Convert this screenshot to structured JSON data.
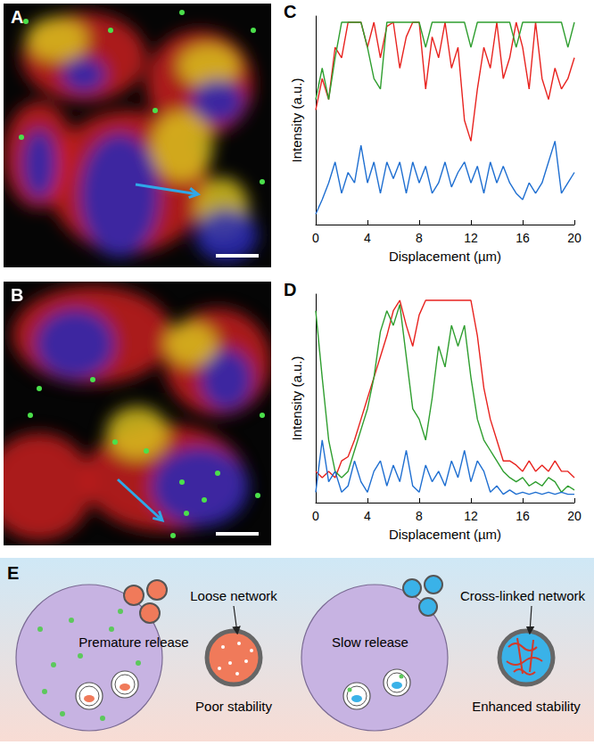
{
  "images": [
    {
      "panel_label": "A"
    },
    {
      "panel_label": "B"
    }
  ],
  "chart_data": [
    {
      "type": "line",
      "panel_label": "C",
      "x_label": "Displacement (µm)",
      "y_label": "Intensity (a.u.)",
      "x": [
        0,
        0.5,
        1,
        1.5,
        2,
        2.5,
        3,
        3.5,
        4,
        4.5,
        5,
        5.5,
        6,
        6.5,
        7,
        7.5,
        8,
        8.5,
        9,
        9.5,
        10,
        10.5,
        11,
        11.5,
        12,
        12.5,
        13,
        13.5,
        14,
        14.5,
        15,
        15.5,
        16,
        16.5,
        17,
        17.5,
        18,
        18.5,
        19,
        19.5,
        20
      ],
      "series": [
        {
          "color": "#e8231f",
          "values": [
            0.55,
            0.7,
            0.6,
            0.85,
            0.8,
            0.97,
            0.97,
            0.97,
            0.85,
            0.97,
            0.8,
            0.95,
            0.97,
            0.75,
            0.9,
            0.97,
            0.97,
            0.65,
            0.9,
            0.8,
            0.97,
            0.75,
            0.85,
            0.5,
            0.4,
            0.65,
            0.85,
            0.75,
            0.97,
            0.7,
            0.8,
            0.97,
            0.85,
            0.65,
            0.97,
            0.7,
            0.6,
            0.75,
            0.65,
            0.7,
            0.8
          ]
        },
        {
          "color": "#2f9e2f",
          "values": [
            0.6,
            0.75,
            0.6,
            0.8,
            0.97,
            0.97,
            0.97,
            0.97,
            0.85,
            0.7,
            0.65,
            0.97,
            0.97,
            0.97,
            0.97,
            0.97,
            0.97,
            0.85,
            0.97,
            0.97,
            0.97,
            0.97,
            0.97,
            0.97,
            0.85,
            0.97,
            0.97,
            0.97,
            0.97,
            0.97,
            0.97,
            0.85,
            0.97,
            0.97,
            0.97,
            0.97,
            0.97,
            0.97,
            0.97,
            0.85,
            0.97
          ]
        },
        {
          "color": "#1f6fd1",
          "values": [
            0.05,
            0.12,
            0.2,
            0.3,
            0.15,
            0.25,
            0.2,
            0.38,
            0.2,
            0.3,
            0.15,
            0.3,
            0.22,
            0.3,
            0.15,
            0.3,
            0.2,
            0.28,
            0.15,
            0.2,
            0.3,
            0.18,
            0.25,
            0.3,
            0.2,
            0.28,
            0.15,
            0.3,
            0.2,
            0.28,
            0.2,
            0.15,
            0.12,
            0.2,
            0.15,
            0.2,
            0.3,
            0.4,
            0.15,
            0.2,
            0.25
          ]
        }
      ],
      "xlim": [
        0,
        20
      ],
      "xticks": [
        0,
        4,
        8,
        12,
        16,
        20
      ],
      "ylim": [
        0,
        1
      ],
      "tick_labels": "x"
    },
    {
      "type": "line",
      "panel_label": "D",
      "x_label": "Displacement (µm)",
      "y_label": "Intensity (a.u.)",
      "x": [
        0,
        0.5,
        1,
        1.5,
        2,
        2.5,
        3,
        3.5,
        4,
        4.5,
        5,
        5.5,
        6,
        6.5,
        7,
        7.5,
        8,
        8.5,
        9,
        9.5,
        10,
        10.5,
        11,
        11.5,
        12,
        12.5,
        13,
        13.5,
        14,
        14.5,
        15,
        15.5,
        16,
        16.5,
        17,
        17.5,
        18,
        18.5,
        19,
        19.5,
        20
      ],
      "series": [
        {
          "color": "#e8231f",
          "values": [
            0.15,
            0.12,
            0.15,
            0.12,
            0.2,
            0.22,
            0.3,
            0.4,
            0.5,
            0.6,
            0.7,
            0.8,
            0.92,
            0.97,
            0.85,
            0.75,
            0.9,
            0.97,
            0.97,
            0.97,
            0.97,
            0.97,
            0.97,
            0.97,
            0.97,
            0.8,
            0.55,
            0.4,
            0.3,
            0.2,
            0.2,
            0.18,
            0.15,
            0.2,
            0.15,
            0.18,
            0.15,
            0.2,
            0.15,
            0.15,
            0.12
          ]
        },
        {
          "color": "#2f9e2f",
          "values": [
            0.92,
            0.6,
            0.3,
            0.15,
            0.12,
            0.15,
            0.25,
            0.35,
            0.45,
            0.6,
            0.82,
            0.92,
            0.85,
            0.95,
            0.7,
            0.45,
            0.4,
            0.3,
            0.5,
            0.75,
            0.65,
            0.85,
            0.75,
            0.85,
            0.6,
            0.4,
            0.3,
            0.25,
            0.2,
            0.15,
            0.12,
            0.1,
            0.12,
            0.08,
            0.1,
            0.08,
            0.12,
            0.1,
            0.05,
            0.08,
            0.06
          ]
        },
        {
          "color": "#1f6fd1",
          "values": [
            0.05,
            0.3,
            0.1,
            0.15,
            0.05,
            0.08,
            0.2,
            0.1,
            0.05,
            0.15,
            0.2,
            0.08,
            0.18,
            0.1,
            0.25,
            0.08,
            0.05,
            0.18,
            0.1,
            0.15,
            0.08,
            0.2,
            0.12,
            0.25,
            0.1,
            0.2,
            0.15,
            0.05,
            0.08,
            0.04,
            0.06,
            0.04,
            0.05,
            0.04,
            0.05,
            0.04,
            0.05,
            0.04,
            0.05,
            0.04,
            0.04
          ]
        }
      ],
      "xlim": [
        0,
        20
      ],
      "xticks": [
        0,
        4,
        8,
        12,
        16,
        20
      ],
      "ylim": [
        0,
        1
      ],
      "tick_labels": "x"
    }
  ],
  "schematic": {
    "panel_label": "E",
    "left": {
      "release": "Premature release",
      "network": "Loose network",
      "stability": "Poor stability"
    },
    "right": {
      "release": "Slow release",
      "network": "Cross-linked network",
      "stability": "Enhanced stability"
    }
  }
}
